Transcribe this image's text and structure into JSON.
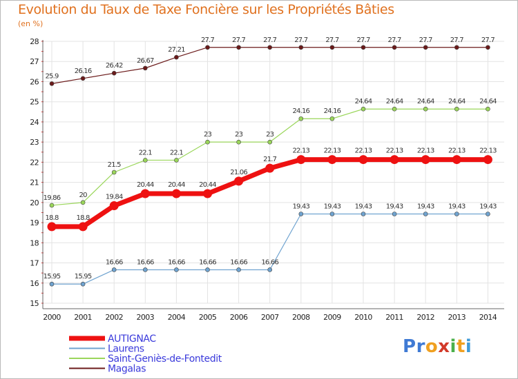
{
  "title": "Evolution du Taux de Taxe Foncière sur les Propriétés Bâties",
  "subtitle": "(en %)",
  "logo": {
    "letters": [
      "P",
      "r",
      "o",
      "x",
      "i",
      "t",
      "i"
    ],
    "colors": [
      "#3f7ad4",
      "#3f7ad4",
      "#f0a020",
      "#d23a2a",
      "#4bb04b",
      "#f0a020",
      "#3f9bd8"
    ]
  },
  "chart_data": {
    "type": "line",
    "x": [
      "2000",
      "2001",
      "2002",
      "2003",
      "2004",
      "2005",
      "2006",
      "2007",
      "2008",
      "2009",
      "2010",
      "2011",
      "2012",
      "2013",
      "2014"
    ],
    "ylim": [
      15,
      28
    ],
    "yticks": [
      15,
      16,
      17,
      18,
      19,
      20,
      21,
      22,
      23,
      24,
      25,
      26,
      27,
      28
    ],
    "grid": true,
    "legend_position": "bottom-left",
    "series": [
      {
        "name": "Magalas",
        "color": "#6b1a1a",
        "width": 1.2,
        "values": [
          25.9,
          26.16,
          26.42,
          26.67,
          27.21,
          27.7,
          27.7,
          27.7,
          27.7,
          27.7,
          27.7,
          27.7,
          27.7,
          27.7,
          27.7
        ],
        "labels": [
          "25.9",
          "26.16",
          "26.42",
          "26.67",
          "27.21",
          "27.7",
          "27.7",
          "27.7",
          "27.7",
          "27.7",
          "27.7",
          "27.7",
          "27.7",
          "27.7",
          "27.7"
        ]
      },
      {
        "name": "Saint-Geniès-de-Fontedit",
        "color": "#9ad65a",
        "width": 1.2,
        "values": [
          19.86,
          20,
          21.5,
          22.1,
          22.1,
          23,
          23,
          23,
          24.16,
          24.16,
          24.64,
          24.64,
          24.64,
          24.64,
          24.64
        ],
        "labels": [
          "19.86",
          "20",
          "21.5",
          "22.1",
          "22.1",
          "23",
          "23",
          "23",
          "24.16",
          "24.16",
          "24.64",
          "24.64",
          "24.64",
          "24.64",
          "24.64"
        ]
      },
      {
        "name": "Laurens",
        "color": "#6fa3d0",
        "width": 1.2,
        "values": [
          15.95,
          15.95,
          16.66,
          16.66,
          16.66,
          16.66,
          16.66,
          16.66,
          19.43,
          19.43,
          19.43,
          19.43,
          19.43,
          19.43,
          19.43
        ],
        "labels": [
          "15.95",
          "15.95",
          "16.66",
          "16.66",
          "16.66",
          "16.66",
          "16.66",
          "16.66",
          "19.43",
          "19.43",
          "19.43",
          "19.43",
          "19.43",
          "19.43",
          "19.43"
        ]
      },
      {
        "name": "AUTIGNAC",
        "color": "#ee1111",
        "width": 7,
        "values": [
          18.8,
          18.8,
          19.84,
          20.44,
          20.44,
          20.44,
          21.06,
          21.7,
          22.13,
          22.13,
          22.13,
          22.13,
          22.13,
          22.13,
          22.13
        ],
        "labels": [
          "18.8",
          "18.8",
          "19.84",
          "20.44",
          "20.44",
          "20.44",
          "21.06",
          "21.7",
          "22.13",
          "22.13",
          "22.13",
          "22.13",
          "22.13",
          "22.13",
          "22.13"
        ]
      }
    ],
    "legend": [
      "AUTIGNAC",
      "Laurens",
      "Saint-Geniès-de-Fontedit",
      "Magalas"
    ]
  }
}
